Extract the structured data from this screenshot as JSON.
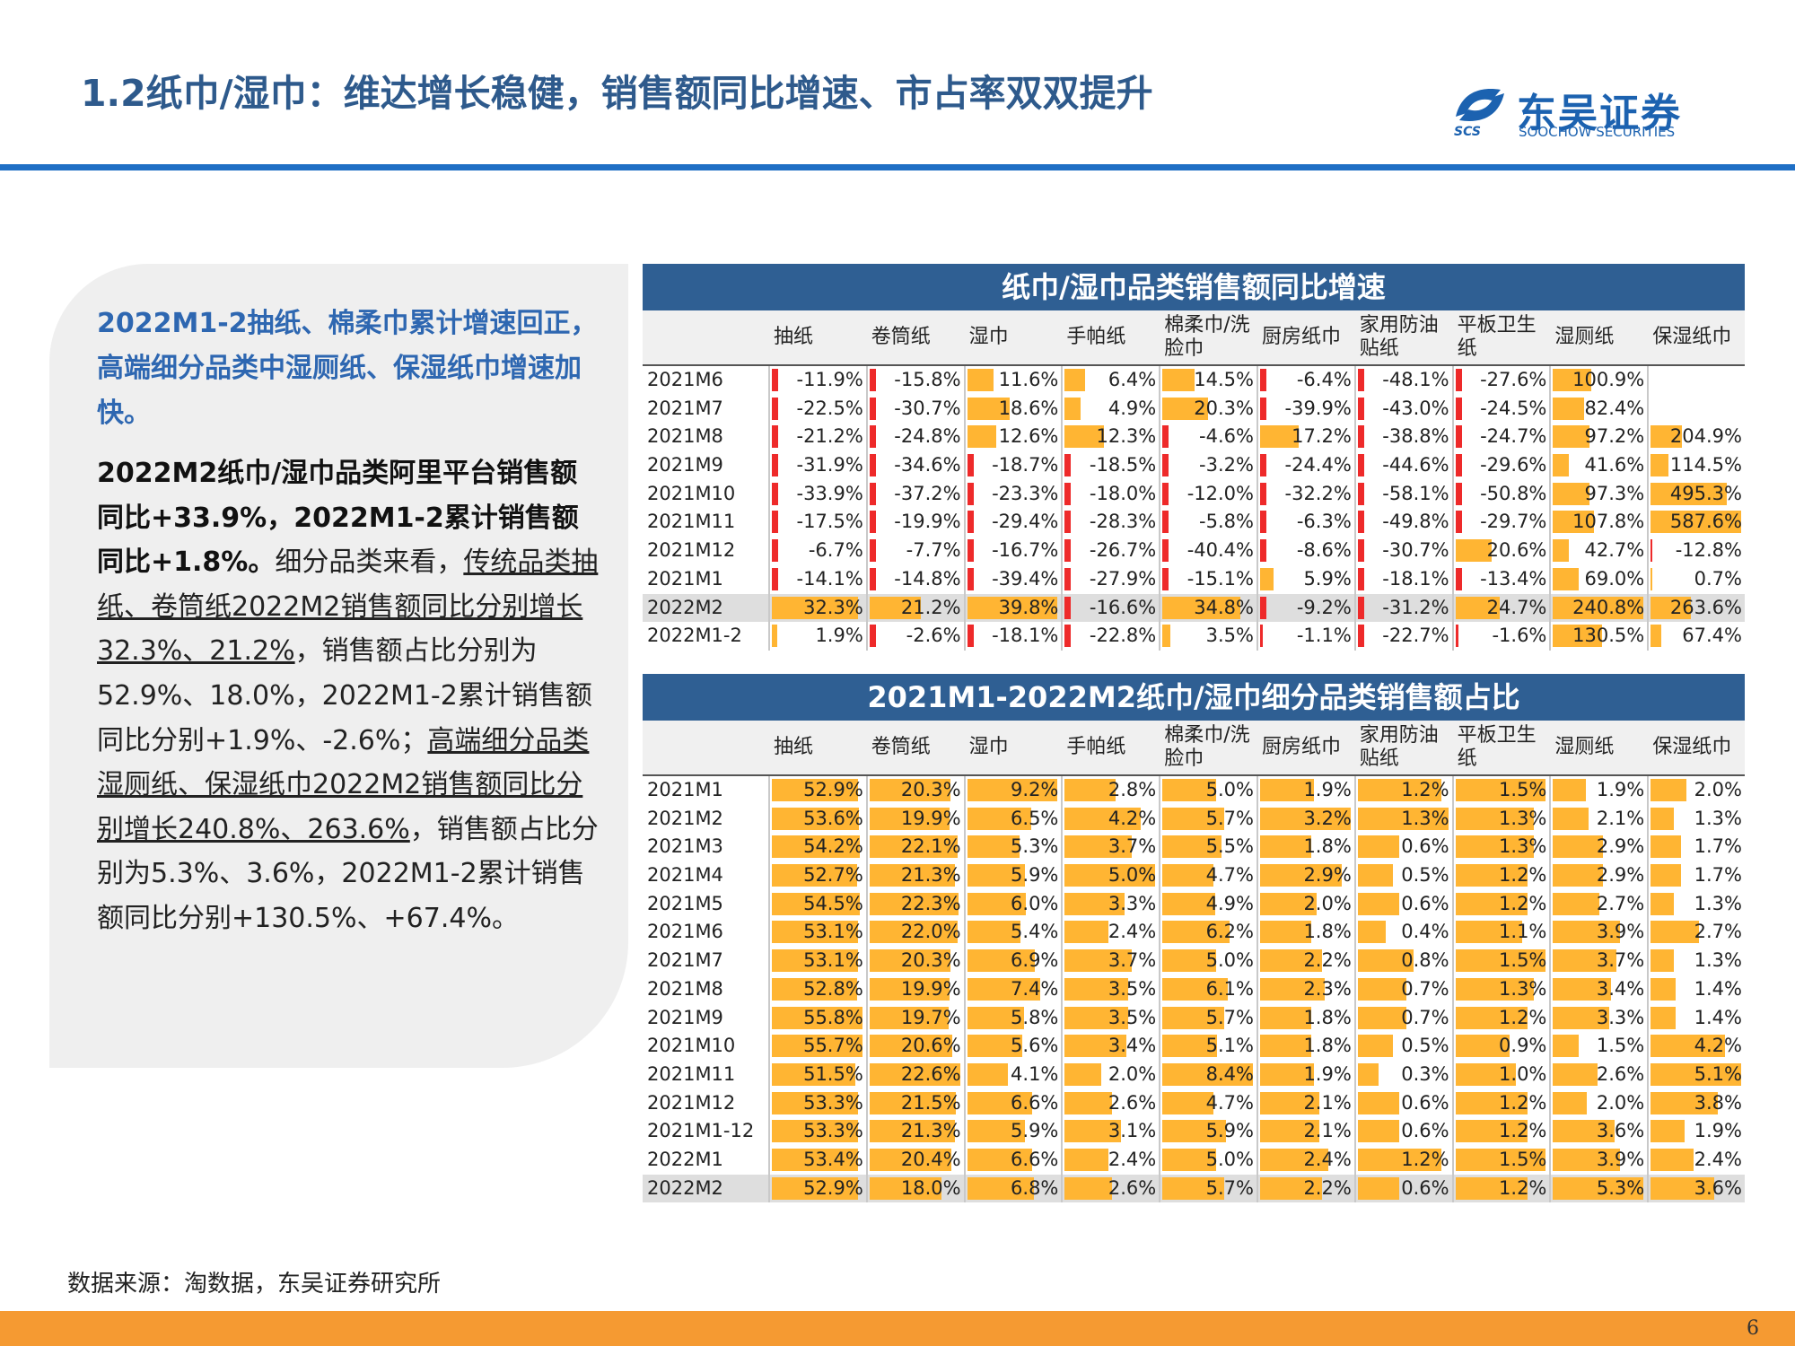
{
  "header": {
    "title": "1.2纸巾/湿巾：维达增长稳健，销售额同比增速、市占率双双提升",
    "logo_cn": "东吴证券",
    "logo_en": "SOOCHOW SECURITIES",
    "logo_abbr": "SCS",
    "accent_color": "#1f6fc5"
  },
  "left_panel": {
    "lead": "2022M1-2抽纸、棉柔巾累计增速回正，高端细分品类中湿厕纸、保湿纸巾增速加快。",
    "p1_bold": "2022M2纸巾/湿巾品类阿里平台销售额同比+33.9%，2022M1-2累计销售额同比+1.8%。",
    "p2": "细分品类来看，",
    "p3_u": "传统品类抽纸、卷筒纸2022M2销售额同比分别增长32.3%、21.2%",
    "p4": "，销售额占比分别为52.9%、18.0%，2022M1-2累计销售额同比分别+1.9%、-2.6%；",
    "p5_u": "高端细分品类湿厕纸、保湿纸巾2022M2销售额同比分别增长240.8%、263.6%",
    "p6": "，销售额占比分别为5.3%、3.6%，2022M1-2累计销售额同比分别+130.5%、+67.4%。"
  },
  "columns": [
    "抽纸",
    "卷筒纸",
    "湿巾",
    "手帕纸",
    "棉柔巾/洗脸巾",
    "厨房纸巾",
    "家用防油贴纸",
    "平板卫生纸",
    "湿厕纸",
    "保湿纸巾"
  ],
  "bar_colors": {
    "positive": "#ffb533",
    "negative": "#ee2a2a"
  },
  "table1": {
    "title": "纸巾/湿巾品类销售额同比增速",
    "highlight_row": 8,
    "rows": [
      {
        "label": "2021M6",
        "values": [
          -11.9,
          -15.8,
          11.6,
          6.4,
          14.5,
          -6.4,
          -48.1,
          -27.6,
          100.9,
          null
        ],
        "texts": [
          "-11.9%",
          "-15.8%",
          "11.6%",
          "6.4%",
          "14.5%",
          "-6.4%",
          "-48.1%",
          "-27.6%",
          "100.9%",
          ""
        ]
      },
      {
        "label": "2021M7",
        "values": [
          -22.5,
          -30.7,
          18.6,
          4.9,
          20.3,
          -39.9,
          -43.0,
          -24.5,
          82.4,
          null
        ],
        "texts": [
          "-22.5%",
          "-30.7%",
          "18.6%",
          "4.9%",
          "20.3%",
          "-39.9%",
          "-43.0%",
          "-24.5%",
          "82.4%",
          ""
        ]
      },
      {
        "label": "2021M8",
        "values": [
          -21.2,
          -24.8,
          12.6,
          12.3,
          -4.6,
          17.2,
          -38.8,
          -24.7,
          97.2,
          204.9
        ],
        "texts": [
          "-21.2%",
          "-24.8%",
          "12.6%",
          "12.3%",
          "-4.6%",
          "17.2%",
          "-38.8%",
          "-24.7%",
          "97.2%",
          "204.9%"
        ]
      },
      {
        "label": "2021M9",
        "values": [
          -31.9,
          -34.6,
          -18.7,
          -18.5,
          -3.2,
          -24.4,
          -44.6,
          -29.6,
          41.6,
          114.5
        ],
        "texts": [
          "-31.9%",
          "-34.6%",
          "-18.7%",
          "-18.5%",
          "-3.2%",
          "-24.4%",
          "-44.6%",
          "-29.6%",
          "41.6%",
          "114.5%"
        ]
      },
      {
        "label": "2021M10",
        "values": [
          -33.9,
          -37.2,
          -23.3,
          -18.0,
          -12.0,
          -32.2,
          -58.1,
          -50.8,
          97.3,
          495.3
        ],
        "texts": [
          "-33.9%",
          "-37.2%",
          "-23.3%",
          "-18.0%",
          "-12.0%",
          "-32.2%",
          "-58.1%",
          "-50.8%",
          "97.3%",
          "495.3%"
        ]
      },
      {
        "label": "2021M11",
        "values": [
          -17.5,
          -19.9,
          -29.4,
          -28.3,
          -5.8,
          -6.3,
          -49.8,
          -29.7,
          107.8,
          587.6
        ],
        "texts": [
          "-17.5%",
          "-19.9%",
          "-29.4%",
          "-28.3%",
          "-5.8%",
          "-6.3%",
          "-49.8%",
          "-29.7%",
          "107.8%",
          "587.6%"
        ]
      },
      {
        "label": "2021M12",
        "values": [
          -6.7,
          -7.7,
          -16.7,
          -26.7,
          -40.4,
          -8.6,
          -30.7,
          20.6,
          42.7,
          -12.8
        ],
        "texts": [
          "-6.7%",
          "-7.7%",
          "-16.7%",
          "-26.7%",
          "-40.4%",
          "-8.6%",
          "-30.7%",
          "20.6%",
          "42.7%",
          "-12.8%"
        ]
      },
      {
        "label": "2021M1",
        "values": [
          -14.1,
          -14.8,
          -39.4,
          -27.9,
          -15.1,
          5.9,
          -18.1,
          -13.4,
          69.0,
          0.7
        ],
        "texts": [
          "-14.1%",
          "-14.8%",
          "-39.4%",
          "-27.9%",
          "-15.1%",
          "5.9%",
          "-18.1%",
          "-13.4%",
          "69.0%",
          "0.7%"
        ]
      },
      {
        "label": "2022M2",
        "values": [
          32.3,
          21.2,
          39.8,
          -16.6,
          34.8,
          -9.2,
          -31.2,
          24.7,
          240.8,
          263.6
        ],
        "texts": [
          "32.3%",
          "21.2%",
          "39.8%",
          "-16.6%",
          "34.8%",
          "-9.2%",
          "-31.2%",
          "24.7%",
          "240.8%",
          "263.6%"
        ]
      },
      {
        "label": "2022M1-2",
        "values": [
          1.9,
          -2.6,
          -18.1,
          -22.8,
          3.5,
          -1.1,
          -22.7,
          -1.6,
          130.5,
          67.4
        ],
        "texts": [
          "1.9%",
          "-2.6%",
          "-18.1%",
          "-22.8%",
          "3.5%",
          "-1.1%",
          "-22.7%",
          "-1.6%",
          "130.5%",
          "67.4%"
        ]
      }
    ]
  },
  "table2": {
    "title": "2021M1-2022M2纸巾/湿巾细分品类销售额占比",
    "highlight_row": 14,
    "rows": [
      {
        "label": "2021M1",
        "values": [
          52.9,
          20.3,
          9.2,
          2.8,
          5.0,
          1.9,
          1.2,
          1.5,
          1.9,
          2.0
        ],
        "texts": [
          "52.9%",
          "20.3%",
          "9.2%",
          "2.8%",
          "5.0%",
          "1.9%",
          "1.2%",
          "1.5%",
          "1.9%",
          "2.0%"
        ]
      },
      {
        "label": "2021M2",
        "values": [
          53.6,
          19.9,
          6.5,
          4.2,
          5.7,
          3.2,
          1.3,
          1.3,
          2.1,
          1.3
        ],
        "texts": [
          "53.6%",
          "19.9%",
          "6.5%",
          "4.2%",
          "5.7%",
          "3.2%",
          "1.3%",
          "1.3%",
          "2.1%",
          "1.3%"
        ]
      },
      {
        "label": "2021M3",
        "values": [
          54.2,
          22.1,
          5.3,
          3.7,
          5.5,
          1.8,
          0.6,
          1.3,
          2.9,
          1.7
        ],
        "texts": [
          "54.2%",
          "22.1%",
          "5.3%",
          "3.7%",
          "5.5%",
          "1.8%",
          "0.6%",
          "1.3%",
          "2.9%",
          "1.7%"
        ]
      },
      {
        "label": "2021M4",
        "values": [
          52.7,
          21.3,
          5.9,
          5.0,
          4.7,
          2.9,
          0.5,
          1.2,
          2.9,
          1.7
        ],
        "texts": [
          "52.7%",
          "21.3%",
          "5.9%",
          "5.0%",
          "4.7%",
          "2.9%",
          "0.5%",
          "1.2%",
          "2.9%",
          "1.7%"
        ]
      },
      {
        "label": "2021M5",
        "values": [
          54.5,
          22.3,
          6.0,
          3.3,
          4.9,
          2.0,
          0.6,
          1.2,
          2.7,
          1.3
        ],
        "texts": [
          "54.5%",
          "22.3%",
          "6.0%",
          "3.3%",
          "4.9%",
          "2.0%",
          "0.6%",
          "1.2%",
          "2.7%",
          "1.3%"
        ]
      },
      {
        "label": "2021M6",
        "values": [
          53.1,
          22.0,
          5.4,
          2.4,
          6.2,
          1.8,
          0.4,
          1.1,
          3.9,
          2.7
        ],
        "texts": [
          "53.1%",
          "22.0%",
          "5.4%",
          "2.4%",
          "6.2%",
          "1.8%",
          "0.4%",
          "1.1%",
          "3.9%",
          "2.7%"
        ]
      },
      {
        "label": "2021M7",
        "values": [
          53.1,
          20.3,
          6.9,
          3.7,
          5.0,
          2.2,
          0.8,
          1.5,
          3.7,
          1.3
        ],
        "texts": [
          "53.1%",
          "20.3%",
          "6.9%",
          "3.7%",
          "5.0%",
          "2.2%",
          "0.8%",
          "1.5%",
          "3.7%",
          "1.3%"
        ]
      },
      {
        "label": "2021M8",
        "values": [
          52.8,
          19.9,
          7.4,
          3.5,
          6.1,
          2.3,
          0.7,
          1.3,
          3.4,
          1.4
        ],
        "texts": [
          "52.8%",
          "19.9%",
          "7.4%",
          "3.5%",
          "6.1%",
          "2.3%",
          "0.7%",
          "1.3%",
          "3.4%",
          "1.4%"
        ]
      },
      {
        "label": "2021M9",
        "values": [
          55.8,
          19.7,
          5.8,
          3.5,
          5.7,
          1.8,
          0.7,
          1.2,
          3.3,
          1.4
        ],
        "texts": [
          "55.8%",
          "19.7%",
          "5.8%",
          "3.5%",
          "5.7%",
          "1.8%",
          "0.7%",
          "1.2%",
          "3.3%",
          "1.4%"
        ]
      },
      {
        "label": "2021M10",
        "values": [
          55.7,
          20.6,
          5.6,
          3.4,
          5.1,
          1.8,
          0.5,
          0.9,
          1.5,
          4.2
        ],
        "texts": [
          "55.7%",
          "20.6%",
          "5.6%",
          "3.4%",
          "5.1%",
          "1.8%",
          "0.5%",
          "0.9%",
          "1.5%",
          "4.2%"
        ]
      },
      {
        "label": "2021M11",
        "values": [
          51.5,
          22.6,
          4.1,
          2.0,
          8.4,
          1.9,
          0.3,
          1.0,
          2.6,
          5.1
        ],
        "texts": [
          "51.5%",
          "22.6%",
          "4.1%",
          "2.0%",
          "8.4%",
          "1.9%",
          "0.3%",
          "1.0%",
          "2.6%",
          "5.1%"
        ]
      },
      {
        "label": "2021M12",
        "values": [
          53.3,
          21.5,
          6.6,
          2.6,
          4.7,
          2.1,
          0.6,
          1.2,
          2.0,
          3.8
        ],
        "texts": [
          "53.3%",
          "21.5%",
          "6.6%",
          "2.6%",
          "4.7%",
          "2.1%",
          "0.6%",
          "1.2%",
          "2.0%",
          "3.8%"
        ]
      },
      {
        "label": "2021M1-12",
        "values": [
          53.3,
          21.3,
          5.9,
          3.1,
          5.9,
          2.1,
          0.6,
          1.2,
          3.6,
          1.9
        ],
        "texts": [
          "53.3%",
          "21.3%",
          "5.9%",
          "3.1%",
          "5.9%",
          "2.1%",
          "0.6%",
          "1.2%",
          "3.6%",
          "1.9%"
        ]
      },
      {
        "label": "2022M1",
        "values": [
          53.4,
          20.4,
          6.6,
          2.4,
          5.0,
          2.4,
          1.2,
          1.5,
          3.9,
          2.4
        ],
        "texts": [
          "53.4%",
          "20.4%",
          "6.6%",
          "2.4%",
          "5.0%",
          "2.4%",
          "1.2%",
          "1.5%",
          "3.9%",
          "2.4%"
        ]
      },
      {
        "label": "2022M2",
        "values": [
          52.9,
          18.0,
          6.8,
          2.6,
          5.7,
          2.2,
          0.6,
          1.2,
          5.3,
          3.6
        ],
        "texts": [
          "52.9%",
          "18.0%",
          "6.8%",
          "2.6%",
          "5.7%",
          "2.2%",
          "0.6%",
          "1.2%",
          "5.3%",
          "3.6%"
        ]
      }
    ]
  },
  "footer": {
    "source": "数据来源：淘数据，东吴证券研究所",
    "page_number": "6"
  }
}
